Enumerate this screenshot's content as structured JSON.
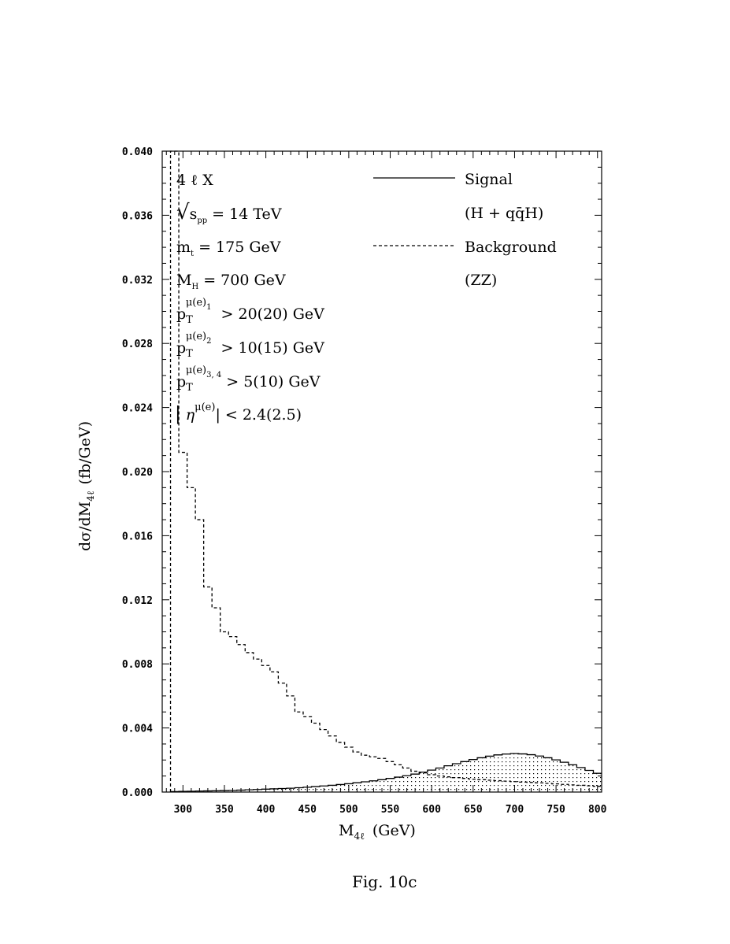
{
  "chart_data": {
    "type": "line",
    "xlabel_main": "M",
    "xlabel_sub": "4ℓ",
    "xlabel_unit": "(GeV)",
    "ylabel_main": "dσ/dM",
    "ylabel_sub": "4ℓ",
    "ylabel_unit": "(fb/GeV)",
    "xlim": [
      275,
      805
    ],
    "ylim": [
      0,
      0.04
    ],
    "x_ticks": [
      "300",
      "350",
      "400",
      "450",
      "500",
      "550",
      "600",
      "650",
      "700",
      "750",
      "800"
    ],
    "y_ticks": [
      "0.000",
      "0.004",
      "0.008",
      "0.012",
      "0.016",
      "0.020",
      "0.024",
      "0.028",
      "0.032",
      "0.036",
      "0.040"
    ],
    "bin_edges": [
      285,
      295,
      305,
      315,
      325,
      335,
      345,
      355,
      365,
      375,
      385,
      395,
      405,
      415,
      425,
      435,
      445,
      455,
      465,
      475,
      485,
      495,
      505,
      515,
      525,
      535,
      545,
      555,
      565,
      575,
      585,
      595,
      605,
      615,
      625,
      635,
      645,
      655,
      665,
      675,
      685,
      695,
      705,
      715,
      725,
      735,
      745,
      755,
      765,
      775,
      785,
      795,
      805
    ],
    "series": [
      {
        "name": "Signal",
        "legend_sub": "(H + qq̄H)",
        "style": "solid",
        "values": [
          3e-05,
          4e-05,
          5e-05,
          6e-05,
          7e-05,
          8e-05,
          9e-05,
          0.0001,
          0.00012,
          0.00014,
          0.00016,
          0.00018,
          0.0002,
          0.00022,
          0.00024,
          0.00027,
          0.0003,
          0.00034,
          0.00038,
          0.00042,
          0.00047,
          0.00052,
          0.00058,
          0.00064,
          0.0007,
          0.00077,
          0.00085,
          0.00093,
          0.00102,
          0.00112,
          0.00124,
          0.00137,
          0.0015,
          0.00164,
          0.00177,
          0.0019,
          0.00203,
          0.00214,
          0.00224,
          0.00232,
          0.00237,
          0.0024,
          0.00238,
          0.00233,
          0.00225,
          0.00214,
          0.00201,
          0.00186,
          0.0017,
          0.00153,
          0.00135,
          0.00117
        ]
      },
      {
        "name": "Background",
        "legend_sub": "(ZZ)",
        "style": "dashed",
        "values": [
          0.04,
          0.0212,
          0.019,
          0.017,
          0.0128,
          0.0115,
          0.01,
          0.0097,
          0.0092,
          0.0087,
          0.0083,
          0.0079,
          0.0075,
          0.0068,
          0.006,
          0.005,
          0.0047,
          0.0043,
          0.0039,
          0.0035,
          0.0031,
          0.0028,
          0.0025,
          0.0023,
          0.0022,
          0.0021,
          0.0019,
          0.0017,
          0.0015,
          0.0013,
          0.0012,
          0.00108,
          0.001,
          0.00095,
          0.0009,
          0.00085,
          0.0008,
          0.00077,
          0.00074,
          0.00071,
          0.00068,
          0.00065,
          0.00062,
          0.0006,
          0.00057,
          0.00054,
          0.00051,
          0.00048,
          0.00045,
          0.00042,
          0.00039,
          0.00036
        ]
      }
    ],
    "annotations": {
      "process": "4 ℓ X",
      "sqrt": "√",
      "s_main": "s",
      "s_sub": "pp",
      "s_val": "= 14 TeV",
      "mt_main": "m",
      "mt_sub": "t",
      "mt_val": "= 175 GeV",
      "mh_main": "M",
      "mh_sub": "H",
      "mh_val": "= 700 GeV",
      "pt_main": "p",
      "pt_T": "T",
      "pt_mu": "μ(e)",
      "pt1_idx": "1",
      "pt1_val": "> 20(20) GeV",
      "pt2_idx": "2",
      "pt2_val": "> 10(15) GeV",
      "pt3_idx": "3, 4",
      "pt3_val": "> 5(10) GeV",
      "eta_bar1": "|",
      "eta_main": "η",
      "eta_sup": "μ(e)",
      "eta_val": "| < 2.4(2.5)"
    }
  },
  "caption": "Fig. 10c"
}
